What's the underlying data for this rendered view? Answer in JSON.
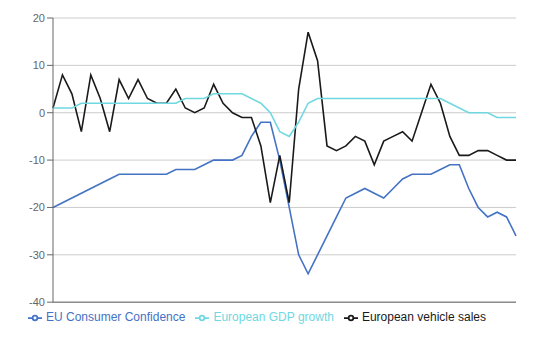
{
  "chart_data": {
    "type": "line",
    "categories": [
      null,
      null,
      null,
      null,
      null,
      null,
      null,
      null,
      null,
      null,
      null,
      null,
      null,
      null,
      null,
      null,
      null,
      null,
      null,
      null,
      null,
      null,
      null,
      null,
      null,
      null,
      null,
      null,
      null,
      null,
      null,
      null,
      null,
      null,
      null,
      null,
      null,
      null,
      null,
      null,
      null,
      null,
      null,
      null,
      null,
      null,
      null,
      null,
      null,
      null
    ],
    "series": [
      {
        "name": "EU Consumer Confidence",
        "color": "#4472C4",
        "values": [
          -20,
          -19,
          -18,
          -17,
          -16,
          -15,
          -14,
          -13,
          -13,
          -13,
          -13,
          -13,
          -13,
          -12,
          -12,
          -12,
          -11,
          -10,
          -10,
          -10,
          -9,
          -5,
          -2,
          -2,
          -10,
          -20,
          -30,
          -34,
          -30,
          -26,
          -22,
          -18,
          -17,
          -16,
          -17,
          -18,
          -16,
          -14,
          -13,
          -13,
          -13,
          -12,
          -11,
          -11,
          -16,
          -20,
          -22,
          -21,
          -22,
          -26
        ]
      },
      {
        "name": "European vehicle sales",
        "color": "#1a1a1a",
        "values": [
          1,
          8,
          4,
          -4,
          8,
          3,
          -4,
          7,
          3,
          7,
          3,
          2,
          2,
          5,
          1,
          0,
          1,
          6,
          2,
          0,
          -1,
          -1,
          -7,
          -19,
          -9,
          -19,
          5,
          17,
          11,
          -7,
          -8,
          -7,
          -5,
          -6,
          -11,
          -6,
          -5,
          -4,
          -6,
          0,
          6,
          2,
          -5,
          -9,
          -9,
          -8,
          -8,
          -9,
          -10,
          -10
        ]
      },
      {
        "name": "European GDP growth",
        "color": "#70d8e0",
        "values": [
          1,
          1,
          1,
          2,
          2,
          2,
          2,
          2,
          2,
          2,
          2,
          2,
          2,
          2,
          3,
          3,
          3,
          4,
          4,
          4,
          4,
          3,
          2,
          0,
          -4,
          -5,
          -2,
          2,
          3,
          3,
          3,
          3,
          3,
          3,
          3,
          3,
          3,
          3,
          3,
          3,
          3,
          3,
          2,
          1,
          0,
          0,
          0,
          -1,
          -1,
          -1
        ]
      }
    ],
    "ylim": [
      -40,
      20
    ],
    "yticks": [
      -40,
      -30,
      -20,
      -10,
      0,
      10,
      20
    ],
    "grid": "y",
    "legend": "bottom",
    "tick_labels": "y"
  }
}
